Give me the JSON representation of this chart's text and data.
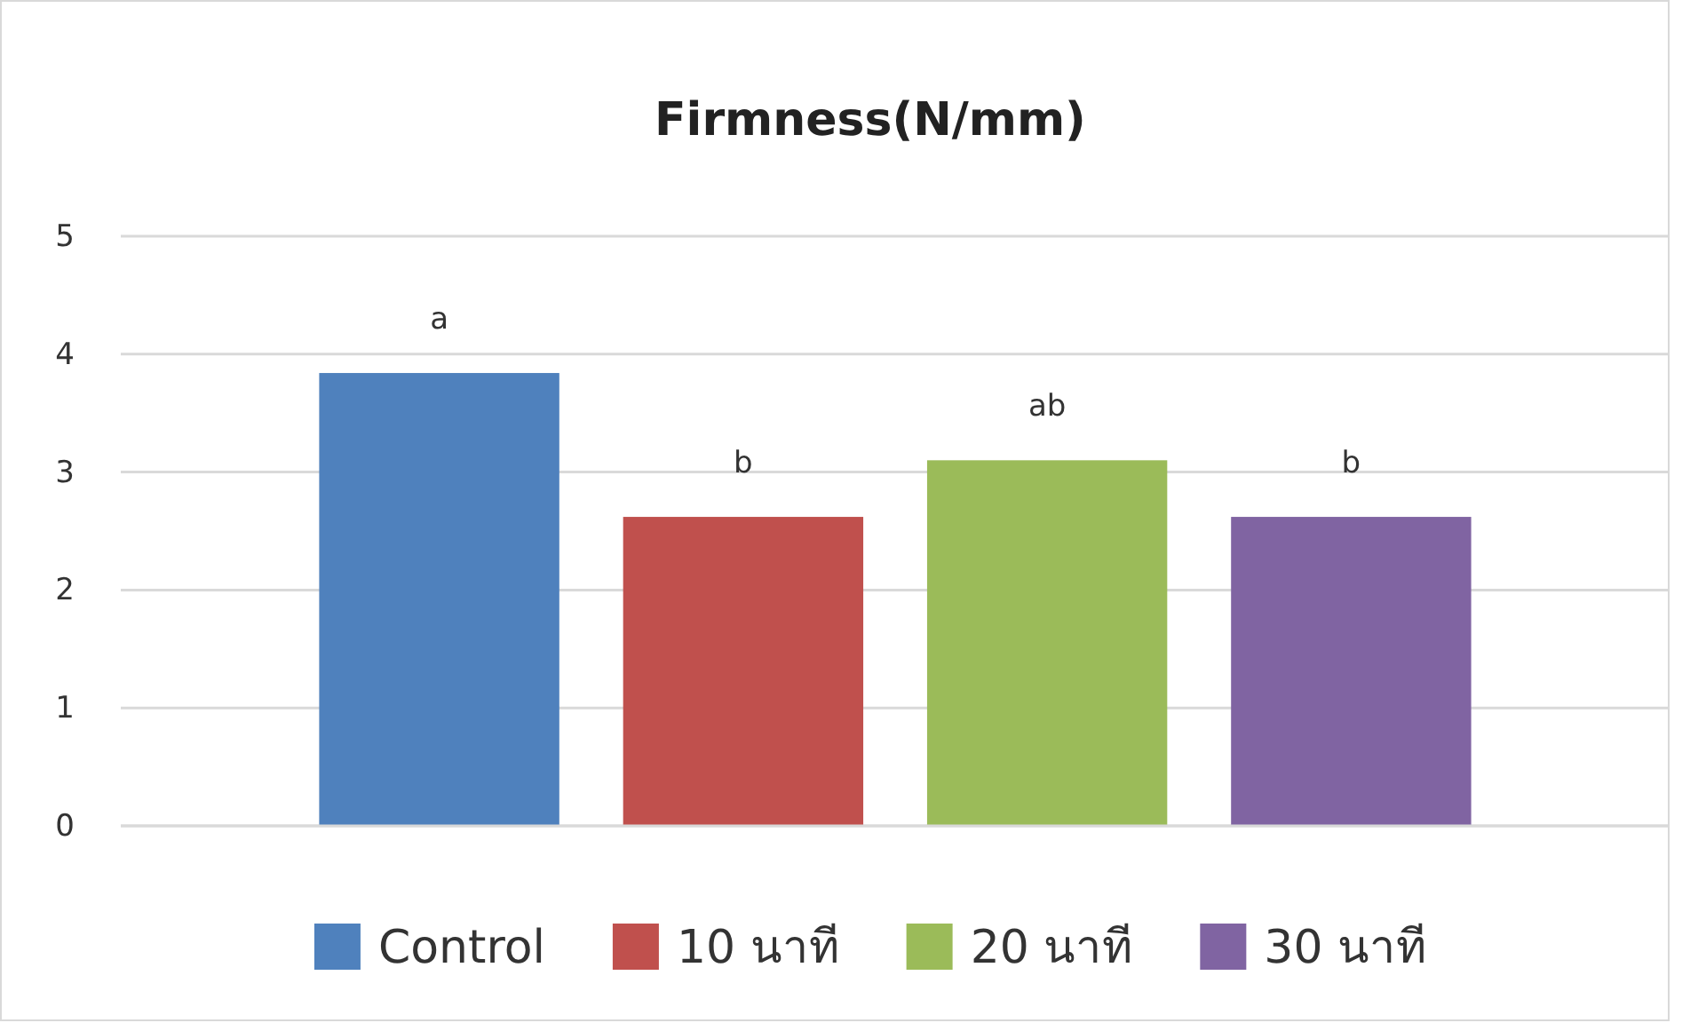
{
  "chart_data": {
    "type": "bar",
    "title": "Firmness(N/mm)",
    "categories": [
      null
    ],
    "series": [
      {
        "name": "Control",
        "color": "#4f81bd",
        "values": [
          3.84
        ]
      },
      {
        "name": "10 นาที",
        "color": "#c0504d",
        "values": [
          2.62
        ]
      },
      {
        "name": "20 นาที",
        "color": "#9bbb59",
        "values": [
          3.1
        ]
      },
      {
        "name": "30 นาที",
        "color": "#8064a2",
        "values": [
          2.62
        ]
      }
    ],
    "annotations": [
      "a",
      "b",
      "ab",
      "b"
    ],
    "ylim": [
      0,
      5
    ],
    "yticks": [
      0,
      1,
      2,
      3,
      4,
      5
    ],
    "grid": "y",
    "legend": "bottom"
  }
}
